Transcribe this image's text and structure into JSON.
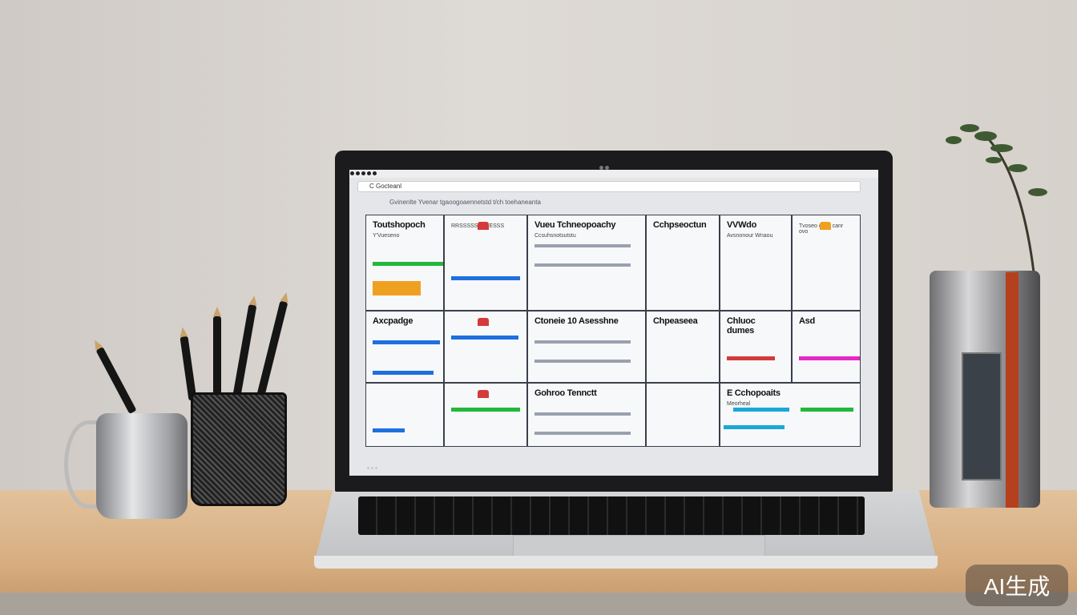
{
  "browser": {
    "address": "C  Gocteanl",
    "nav_text": "Gvinenlte  Yvenar  tgaoogoaennetstd  t/ch  toehaneanta"
  },
  "cards": [
    {
      "title": "Toutshopoch",
      "subtitle": "Y'Vueseno"
    },
    {
      "title": "",
      "subtitle": "RRSSSSSSESESSS"
    },
    {
      "title": "Vueu Tchneopoachy",
      "subtitle": "Ccsuhsnotsutstu"
    },
    {
      "title": "Cchpseoctun",
      "subtitle": ""
    },
    {
      "title": "VVWdo",
      "subtitle": "Avsnonour  Wnaou"
    },
    {
      "title": "",
      "subtitle": "Tvoseo osse canr ovo"
    },
    {
      "title": "Axcpadge",
      "subtitle": ""
    },
    {
      "title": "",
      "subtitle": ""
    },
    {
      "title": "Ctoneie 10 Asesshne",
      "subtitle": ""
    },
    {
      "title": "Chpeaseea",
      "subtitle": ""
    },
    {
      "title": "Chluoc dumes",
      "subtitle": ""
    },
    {
      "title": "Asd",
      "subtitle": ""
    },
    {
      "title": "",
      "subtitle": ""
    },
    {
      "title": "",
      "subtitle": ""
    },
    {
      "title": "Gohroo Tennctt",
      "subtitle": ""
    },
    {
      "title": "",
      "subtitle": ""
    },
    {
      "title": "E  Cchopoaits",
      "subtitle": "Meorheal"
    }
  ],
  "colors": {
    "green": "#22b83a",
    "blue": "#1e6fe0",
    "orange": "#f0a020",
    "magenta": "#e628c8",
    "cyan": "#1aa8d8",
    "red": "#d43a3a"
  },
  "watermark": "AI生成"
}
